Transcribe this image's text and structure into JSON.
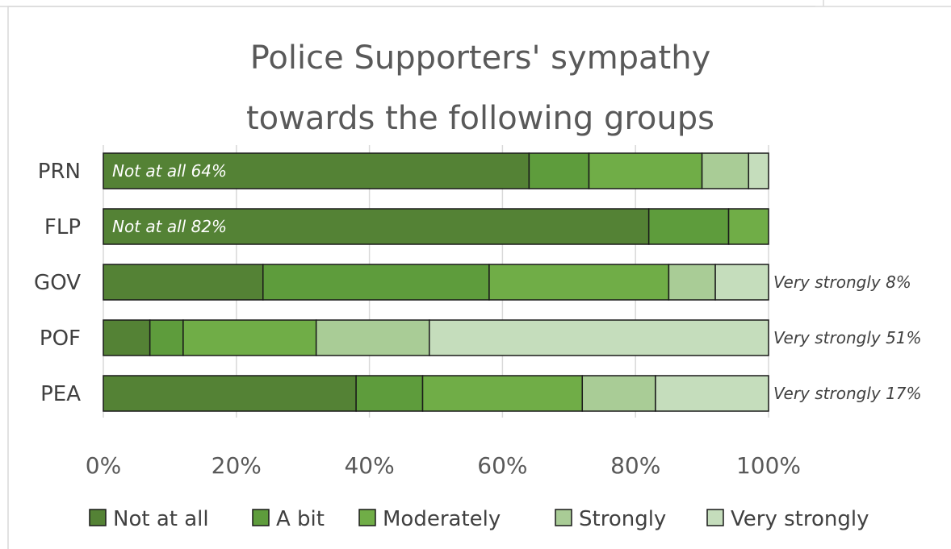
{
  "chart_data": {
    "type": "bar",
    "orientation": "horizontal",
    "stacked": true,
    "percent_stacked": true,
    "title_lines": [
      "Police Supporters' sympathy",
      "towards the following groups"
    ],
    "categories": [
      "PRN",
      "FLP",
      "GOV",
      "POF",
      "PEA"
    ],
    "series": [
      {
        "name": "Not at all",
        "color": "#548235",
        "values": [
          64,
          82,
          24,
          7,
          38
        ]
      },
      {
        "name": "A bit",
        "color": "#5E9C3C",
        "values": [
          9,
          12,
          34,
          5,
          10
        ]
      },
      {
        "name": "Moderately",
        "color": "#70AD47",
        "values": [
          17,
          6,
          27,
          20,
          24
        ]
      },
      {
        "name": "Strongly",
        "color": "#A9CC96",
        "values": [
          7,
          0,
          7,
          17,
          11
        ]
      },
      {
        "name": "Very strongly",
        "color": "#C5DDBC",
        "values": [
          3,
          0,
          8,
          51,
          17
        ]
      }
    ],
    "bar_labels": [
      {
        "text": "Not at all 64%",
        "position": "inside-start"
      },
      {
        "text": "Not at all 82%",
        "position": "inside-start"
      },
      {
        "text": "Very strongly 8%",
        "position": "outside-end"
      },
      {
        "text": "Very strongly 51%",
        "position": "outside-end"
      },
      {
        "text": "Very strongly 17%",
        "position": "outside-end"
      }
    ],
    "xlim": [
      0,
      100
    ],
    "x_ticks": [
      "0%",
      "20%",
      "40%",
      "60%",
      "80%",
      "100%"
    ],
    "grid": true,
    "legend": "bottom"
  }
}
